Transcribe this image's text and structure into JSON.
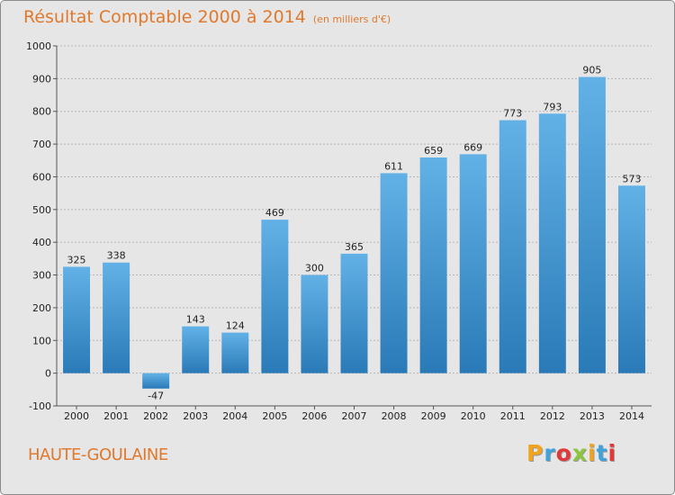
{
  "title": "Résultat Comptable 2000 à 2014",
  "unit": "(en milliers d'€)",
  "commune": "HAUTE-GOULAINE",
  "logo": {
    "letters": [
      "P",
      "r",
      "o",
      "x",
      "i",
      "t",
      "i"
    ],
    "colors": [
      "#f2a31c",
      "#3fa2dc",
      "#e2383a",
      "#8cc63f",
      "#f2a31c",
      "#3fa2dc",
      "#e2383a"
    ]
  },
  "colors": {
    "title": "#e0792d",
    "bar_light": "#62b1e6",
    "bar_dark": "#2a7ab8",
    "background": "#e6e6e6"
  },
  "chart_data": {
    "type": "bar",
    "title": "Résultat Comptable 2000 à 2014",
    "categories": [
      "2000",
      "2001",
      "2002",
      "2003",
      "2004",
      "2005",
      "2006",
      "2007",
      "2008",
      "2009",
      "2010",
      "2011",
      "2012",
      "2013",
      "2014"
    ],
    "values": [
      325,
      338,
      -47,
      143,
      124,
      469,
      300,
      365,
      611,
      659,
      669,
      773,
      793,
      905,
      573
    ],
    "ylim": [
      -100,
      1000
    ],
    "yticks": [
      -100,
      0,
      100,
      200,
      300,
      400,
      500,
      600,
      700,
      800,
      900,
      1000
    ],
    "grid": true
  }
}
